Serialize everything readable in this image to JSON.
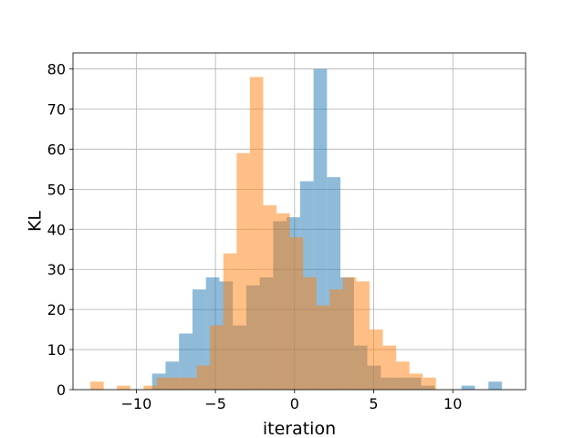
{
  "chart_data": {
    "type": "bar",
    "title": "",
    "xlabel": "iteration",
    "ylabel": "KL",
    "xlim": [
      -14.0,
      14.6
    ],
    "ylim": [
      0,
      84
    ],
    "grid": true,
    "xticks": [
      -10,
      -5,
      0,
      5,
      10
    ],
    "yticks": [
      0,
      10,
      20,
      30,
      40,
      50,
      60,
      70,
      80
    ],
    "series": [
      {
        "color": "#1f77b4",
        "opacity": 0.5,
        "bin_edges": [
          -9.0,
          -8.15,
          -7.3,
          -6.45,
          -5.6,
          -4.75,
          -3.9,
          -3.05,
          -2.2,
          -1.35,
          -0.5,
          0.35,
          1.2,
          2.05,
          2.9,
          3.75,
          4.6,
          5.45,
          6.3,
          7.15,
          8.0,
          8.85,
          9.7,
          10.55,
          11.4,
          12.25,
          13.1
        ],
        "counts": [
          4,
          7,
          14,
          25,
          28,
          27,
          16,
          26,
          28,
          42,
          43,
          52,
          80,
          53,
          28,
          11,
          6,
          3,
          3,
          3,
          1,
          0,
          0,
          1,
          0,
          2
        ]
      },
      {
        "color": "#ff7f0e",
        "opacity": 0.5,
        "bin_edges": [
          -12.9,
          -12.06,
          -11.22,
          -10.38,
          -9.54,
          -8.7,
          -7.86,
          -7.02,
          -6.18,
          -5.34,
          -4.5,
          -3.66,
          -2.82,
          -1.98,
          -1.14,
          -0.3,
          0.54,
          1.38,
          2.22,
          3.06,
          3.9,
          4.74,
          5.58,
          6.42,
          7.26,
          8.1,
          8.94,
          9.78
        ],
        "counts": [
          2,
          0,
          1,
          0,
          1,
          3,
          3,
          3,
          6,
          16,
          34,
          59,
          78,
          46,
          44,
          38,
          28,
          21,
          25,
          28,
          27,
          15,
          11,
          7,
          4,
          3,
          0
        ]
      }
    ]
  }
}
